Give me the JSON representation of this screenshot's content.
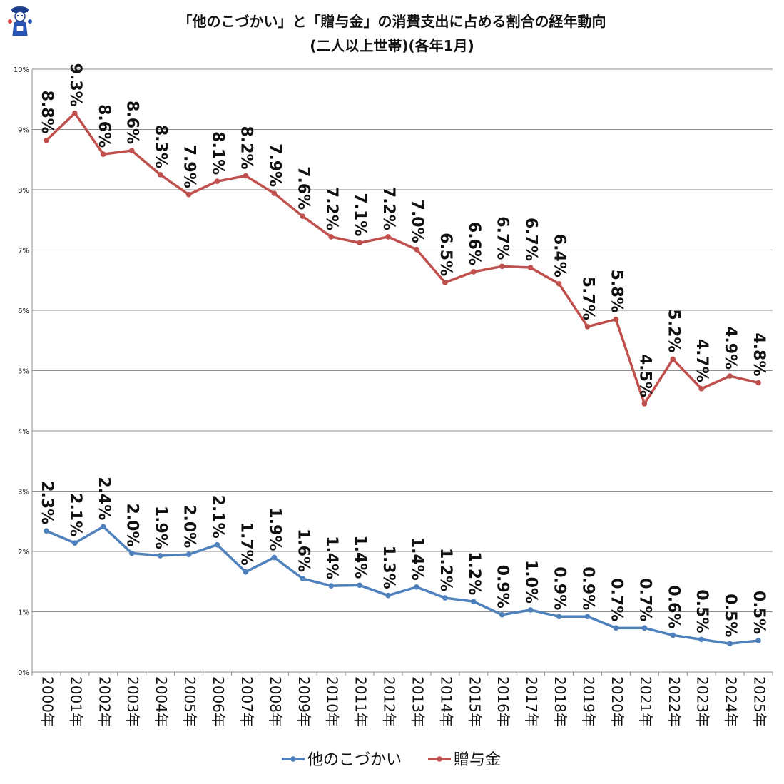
{
  "chart_data": {
    "type": "line",
    "title_line1": "「他のこづかい」と「贈与金」の消費支出に占める割合の経年動向",
    "title_line2": "(二人以上世帯)(各年1月)",
    "categories": [
      "2000年",
      "2001年",
      "2002年",
      "2003年",
      "2004年",
      "2005年",
      "2006年",
      "2007年",
      "2008年",
      "2009年",
      "2010年",
      "2011年",
      "2012年",
      "2013年",
      "2014年",
      "2015年",
      "2016年",
      "2017年",
      "2018年",
      "2019年",
      "2020年",
      "2021年",
      "2022年",
      "2023年",
      "2024年",
      "2025年"
    ],
    "ylim": [
      0,
      10
    ],
    "yticks": [
      0,
      1,
      2,
      3,
      4,
      5,
      6,
      7,
      8,
      9,
      10
    ],
    "ytick_labels": [
      "0%",
      "1%",
      "2%",
      "3%",
      "4%",
      "5%",
      "6%",
      "7%",
      "8%",
      "9%",
      "10%"
    ],
    "series": [
      {
        "name": "他のこづかい",
        "color": "#4f81bd",
        "values": [
          2.34,
          2.14,
          2.41,
          1.97,
          1.93,
          1.95,
          2.11,
          1.66,
          1.9,
          1.55,
          1.43,
          1.44,
          1.27,
          1.41,
          1.23,
          1.17,
          0.95,
          1.03,
          0.92,
          0.92,
          0.73,
          0.73,
          0.61,
          0.54,
          0.47,
          0.52
        ],
        "labels": [
          "2.3%",
          "2.1%",
          "2.4%",
          "2.0%",
          "1.9%",
          "2.0%",
          "2.1%",
          "1.7%",
          "1.9%",
          "1.6%",
          "1.4%",
          "1.4%",
          "1.3%",
          "1.4%",
          "1.2%",
          "1.2%",
          "0.9%",
          "1.0%",
          "0.9%",
          "0.9%",
          "0.7%",
          "0.7%",
          "0.6%",
          "0.5%",
          "0.5%",
          "0.5%"
        ]
      },
      {
        "name": "贈与金",
        "color": "#c0504d",
        "values": [
          8.82,
          9.27,
          8.59,
          8.65,
          8.25,
          7.92,
          8.14,
          8.23,
          7.94,
          7.56,
          7.22,
          7.12,
          7.22,
          7.01,
          6.46,
          6.64,
          6.73,
          6.71,
          6.44,
          5.73,
          5.85,
          4.45,
          5.19,
          4.7,
          4.91,
          4.8
        ],
        "labels": [
          "8.8%",
          "9.3%",
          "8.6%",
          "8.6%",
          "8.3%",
          "7.9%",
          "8.1%",
          "8.2%",
          "7.9%",
          "7.6%",
          "7.2%",
          "7.1%",
          "7.2%",
          "7.0%",
          "6.5%",
          "6.6%",
          "6.7%",
          "6.7%",
          "6.4%",
          "5.7%",
          "5.8%",
          "4.5%",
          "5.2%",
          "4.7%",
          "4.9%",
          "4.8%"
        ]
      }
    ],
    "legend_position": "bottom-center",
    "grid": true
  }
}
